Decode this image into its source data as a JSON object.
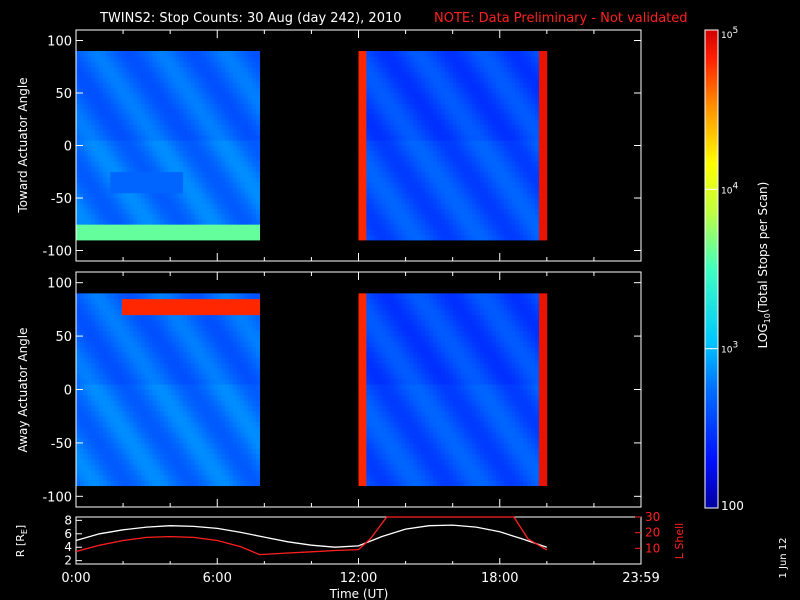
{
  "header": {
    "title": "TWINS2: Stop Counts: 30 Aug (day 242), 2010",
    "note": "NOTE: Data Preliminary - Not validated"
  },
  "colorbar": {
    "label_log": "LOG",
    "label_sub": "10",
    "label_rest": "(Total Stops per Scan)",
    "ticks": [
      {
        "value": 100,
        "label": "100"
      },
      {
        "value": 1000,
        "label_base": "10",
        "label_exp": "3"
      },
      {
        "value": 10000,
        "label_base": "10",
        "label_exp": "4"
      },
      {
        "value": 100000,
        "label_base": "10",
        "label_exp": "5"
      }
    ],
    "colors": [
      "#0000a0",
      "#0010ff",
      "#0070ff",
      "#00c8ff",
      "#40ffc0",
      "#c0ff40",
      "#ffff00",
      "#ff9000",
      "#ff2000",
      "#d00000"
    ]
  },
  "footer": {
    "side_date": "1 Jun 12",
    "xlabel": "Time (UT)",
    "xticks": [
      "0:00",
      "6:00",
      "12:00",
      "18:00",
      "23:59"
    ]
  },
  "chart_data": [
    {
      "type": "heatmap",
      "ylabel": "Toward Actuator Angle",
      "xlim": [
        0,
        24
      ],
      "ylim": [
        -110,
        110
      ],
      "yticks": [
        100,
        50,
        0,
        -50,
        -100
      ],
      "y_range_data": [
        -90,
        90
      ],
      "data_intervals_ut": [
        [
          0.0,
          7.8
        ],
        [
          12.0,
          20.0
        ]
      ],
      "features": [
        {
          "t0": 0.0,
          "t1": 7.8,
          "y0": -90,
          "y1": -75,
          "level": 3.6
        },
        {
          "t0": 1.5,
          "t1": 4.5,
          "y0": -45,
          "y1": -25,
          "level": 2.7
        },
        {
          "t0": 12.0,
          "t1": 12.4,
          "y0": -90,
          "y1": 90,
          "level": 4.8
        },
        {
          "t0": 19.6,
          "t1": 20.0,
          "y0": -90,
          "y1": 90,
          "level": 4.9
        }
      ],
      "zlim": [
        100,
        100000
      ],
      "zscale": "log"
    },
    {
      "type": "heatmap",
      "ylabel": "Away Actuator Angle",
      "xlim": [
        0,
        24
      ],
      "ylim": [
        -110,
        110
      ],
      "yticks": [
        100,
        50,
        0,
        -50,
        -100
      ],
      "y_range_data": [
        -90,
        90
      ],
      "data_intervals_ut": [
        [
          0.0,
          7.8
        ],
        [
          12.0,
          20.0
        ]
      ],
      "features": [
        {
          "t0": 2.0,
          "t1": 7.8,
          "y0": 70,
          "y1": 85,
          "level": 4.8
        },
        {
          "t0": 12.0,
          "t1": 12.3,
          "y0": -90,
          "y1": 90,
          "level": 4.8
        },
        {
          "t0": 19.6,
          "t1": 20.0,
          "y0": -90,
          "y1": 90,
          "level": 4.9
        }
      ],
      "zlim": [
        100,
        100000
      ],
      "zscale": "log"
    },
    {
      "type": "line",
      "ylabel_left": "R [R",
      "ylabel_left_sub": "E",
      "ylabel_left_end": "]",
      "ylabel_right": "L Shell",
      "ylim_left": [
        1.5,
        8.5
      ],
      "yticks_left": [
        2,
        4,
        6,
        8
      ],
      "ylim_right": [
        0,
        30
      ],
      "yticks_right": [
        10,
        20,
        30
      ],
      "xlim": [
        0,
        24
      ],
      "series": [
        {
          "axis": "left",
          "color": "#ffffff",
          "x": [
            0,
            1,
            2,
            3,
            4,
            5,
            6,
            7,
            8,
            9,
            10,
            11,
            12,
            13,
            14,
            15,
            16,
            17,
            18,
            19,
            20
          ],
          "y": [
            5.0,
            6.0,
            6.6,
            7.0,
            7.2,
            7.1,
            6.8,
            6.2,
            5.5,
            4.8,
            4.3,
            4.0,
            4.2,
            5.6,
            6.7,
            7.2,
            7.3,
            7.0,
            6.3,
            5.2,
            4.0
          ]
        },
        {
          "axis": "right",
          "color": "#ff2020",
          "x": [
            0,
            1,
            2,
            3,
            4,
            5,
            6,
            7,
            7.8,
            9,
            10,
            11,
            12,
            12.5,
            13.2,
            18.6,
            19.2,
            20
          ],
          "y": [
            8,
            12,
            15,
            17,
            17.5,
            17,
            15,
            11,
            6,
            7,
            7.8,
            8.6,
            9.2,
            16,
            31,
            31,
            16,
            9
          ]
        }
      ]
    }
  ]
}
